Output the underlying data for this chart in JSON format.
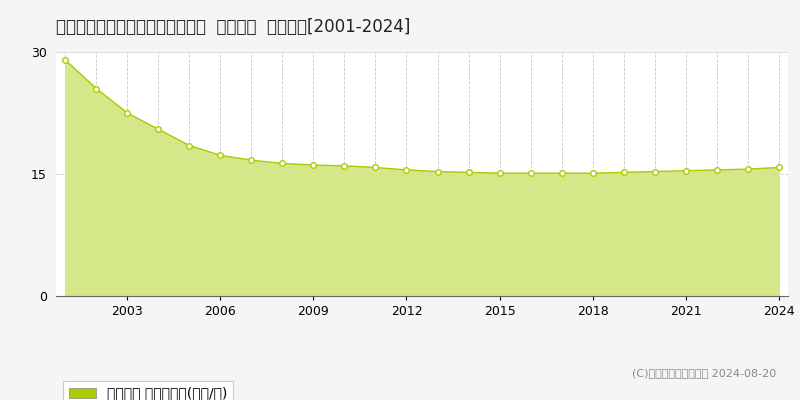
{
  "title": "岡山県倉敷市連島５丁目３番４外  地価公示  地価推移[2001-2024]",
  "years": [
    2001,
    2002,
    2003,
    2004,
    2005,
    2006,
    2007,
    2008,
    2009,
    2010,
    2011,
    2012,
    2013,
    2014,
    2015,
    2016,
    2017,
    2018,
    2019,
    2020,
    2021,
    2022,
    2023,
    2024
  ],
  "values": [
    29.0,
    25.5,
    22.5,
    20.5,
    18.5,
    17.3,
    16.7,
    16.3,
    16.1,
    16.0,
    15.8,
    15.5,
    15.3,
    15.2,
    15.1,
    15.1,
    15.1,
    15.1,
    15.2,
    15.3,
    15.4,
    15.5,
    15.6,
    15.8
  ],
  "line_color": "#aacc00",
  "fill_color": "#d4e88a",
  "fill_alpha": 1.0,
  "marker_color": "white",
  "marker_edge_color": "#aacc00",
  "ylim": [
    0,
    30
  ],
  "yticks": [
    0,
    15,
    30
  ],
  "xticks": [
    2003,
    2006,
    2009,
    2012,
    2015,
    2018,
    2021,
    2024
  ],
  "grid_color": "#bbbbbb",
  "bg_color": "#f5f5f5",
  "plot_bg_color": "#ffffff",
  "legend_label": "地価公示 平均坪単価(万円/坪)",
  "legend_color": "#aacc00",
  "copyright_text": "(C)土地価格ドットコム 2024-08-20",
  "title_fontsize": 12,
  "tick_fontsize": 9,
  "legend_fontsize": 9
}
